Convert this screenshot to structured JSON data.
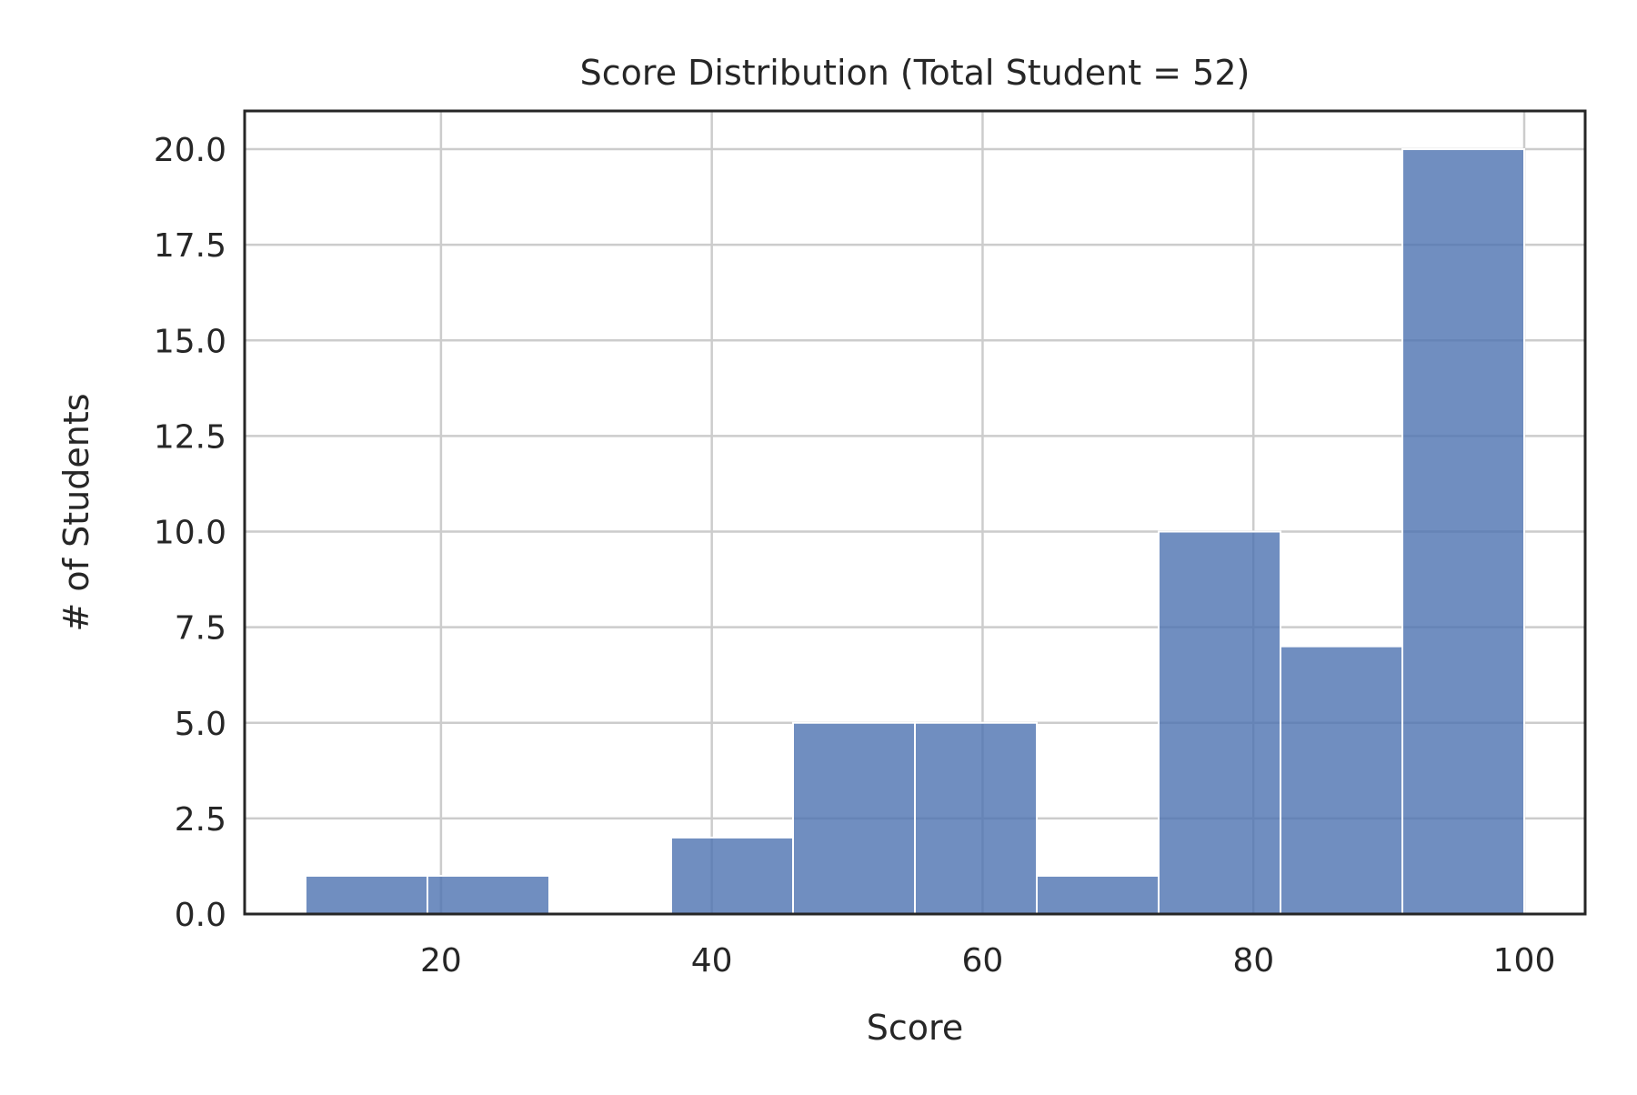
{
  "chart_data": {
    "type": "bar",
    "title": "Score Distribution (Total Student = 52)",
    "xlabel": "Score",
    "ylabel": "# of Students",
    "xlim": [
      5.5,
      104.5
    ],
    "ylim": [
      0,
      21
    ],
    "xticks": [
      20,
      40,
      60,
      80,
      100
    ],
    "xtick_labels": [
      "20",
      "40",
      "60",
      "80",
      "100"
    ],
    "yticks": [
      0,
      2.5,
      5,
      7.5,
      10,
      12.5,
      15,
      17.5,
      20
    ],
    "ytick_labels": [
      "0.0",
      "2.5",
      "5.0",
      "7.5",
      "10.0",
      "12.5",
      "15.0",
      "17.5",
      "20.0"
    ],
    "bins": [
      {
        "x0": 10,
        "x1": 19,
        "count": 1
      },
      {
        "x0": 19,
        "x1": 28,
        "count": 1
      },
      {
        "x0": 28,
        "x1": 37,
        "count": 0
      },
      {
        "x0": 37,
        "x1": 46,
        "count": 2
      },
      {
        "x0": 46,
        "x1": 55,
        "count": 5
      },
      {
        "x0": 55,
        "x1": 64,
        "count": 5
      },
      {
        "x0": 64,
        "x1": 73,
        "count": 1
      },
      {
        "x0": 73,
        "x1": 82,
        "count": 10
      },
      {
        "x0": 82,
        "x1": 91,
        "count": 7
      },
      {
        "x0": 91,
        "x1": 100,
        "count": 20
      }
    ],
    "grid": true,
    "colors": {
      "bar": "#4c72b0",
      "bar_edge": "#ffffff",
      "grid": "#cccccc",
      "frame": "#262626",
      "text": "#262626"
    }
  }
}
